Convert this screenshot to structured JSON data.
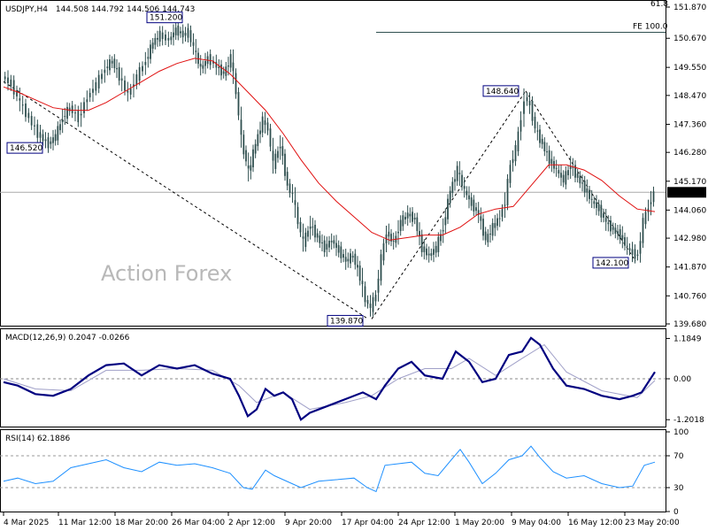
{
  "header": {
    "symbol": "USDJPY,H4",
    "ohlc": "144.508 144.792 144.506 144.743"
  },
  "watermark": "Action Forex",
  "colors": {
    "candle": "#2f4f4f",
    "ma": "#e01010",
    "macd_line": "#000080",
    "macd_signal": "#a0a0c8",
    "rsi": "#1e90ff",
    "grid": "#000000"
  },
  "chart_data": [
    {
      "type": "candlestick",
      "name": "price",
      "ylim": [
        139.68,
        151.87
      ],
      "y_ticks": [
        "151.870",
        "150.670",
        "149.550",
        "148.470",
        "147.360",
        "146.280",
        "145.170",
        "144.060",
        "142.980",
        "141.870",
        "140.760",
        "139.680"
      ],
      "top_tick_label": "61.8",
      "current_price": "144.743",
      "fe_label": "FE 100.0",
      "fe_level": 150.9,
      "annotations": [
        {
          "label": "151.200",
          "x": 200,
          "y": 151.2
        },
        {
          "label": "146.520",
          "x": 40,
          "y": 146.52
        },
        {
          "label": "139.870",
          "x": 416,
          "y": 139.87
        },
        {
          "label": "148.640",
          "x": 594,
          "y": 148.64
        },
        {
          "label": "142.100",
          "x": 718,
          "y": 142.1
        }
      ],
      "x_labels": [
        "4 Mar 2025",
        "11 Mar 12:00",
        "18 Mar 20:00",
        "26 Mar 04:00",
        "2 Apr 12:00",
        "9 Apr 20:00",
        "17 Apr 04:00",
        "24 Apr 12:00",
        "1 May 20:00",
        "9 May 04:00",
        "16 May 12:00",
        "23 May 20:00"
      ],
      "price_path": [
        [
          4,
          149.2
        ],
        [
          14,
          148.9
        ],
        [
          24,
          148.2
        ],
        [
          34,
          147.6
        ],
        [
          44,
          147.0
        ],
        [
          56,
          146.6
        ],
        [
          64,
          146.9
        ],
        [
          72,
          147.6
        ],
        [
          80,
          148.0
        ],
        [
          90,
          147.6
        ],
        [
          100,
          148.4
        ],
        [
          110,
          148.9
        ],
        [
          120,
          149.5
        ],
        [
          128,
          149.8
        ],
        [
          136,
          149.2
        ],
        [
          146,
          148.5
        ],
        [
          156,
          149.2
        ],
        [
          166,
          149.8
        ],
        [
          174,
          150.5
        ],
        [
          182,
          150.8
        ],
        [
          192,
          150.6
        ],
        [
          200,
          151.0
        ],
        [
          208,
          150.8
        ],
        [
          214,
          150.9
        ],
        [
          220,
          150.3
        ],
        [
          228,
          149.5
        ],
        [
          236,
          149.9
        ],
        [
          246,
          149.6
        ],
        [
          254,
          149.3
        ],
        [
          262,
          149.9
        ],
        [
          268,
          148.6
        ],
        [
          274,
          146.8
        ],
        [
          282,
          145.5
        ],
        [
          290,
          146.6
        ],
        [
          298,
          147.5
        ],
        [
          304,
          147.2
        ],
        [
          310,
          145.8
        ],
        [
          318,
          146.6
        ],
        [
          326,
          145.0
        ],
        [
          332,
          144.6
        ],
        [
          338,
          143.6
        ],
        [
          344,
          142.8
        ],
        [
          352,
          143.5
        ],
        [
          360,
          143.0
        ],
        [
          368,
          142.6
        ],
        [
          376,
          142.9
        ],
        [
          384,
          142.5
        ],
        [
          392,
          142.1
        ],
        [
          400,
          142.3
        ],
        [
          408,
          141.5
        ],
        [
          414,
          140.6
        ],
        [
          420,
          140.3
        ],
        [
          426,
          140.8
        ],
        [
          432,
          142.2
        ],
        [
          438,
          143.2
        ],
        [
          446,
          142.8
        ],
        [
          454,
          143.6
        ],
        [
          462,
          143.9
        ],
        [
          470,
          143.7
        ],
        [
          478,
          142.6
        ],
        [
          486,
          142.3
        ],
        [
          494,
          142.6
        ],
        [
          502,
          143.4
        ],
        [
          510,
          144.8
        ],
        [
          518,
          145.6
        ],
        [
          526,
          144.8
        ],
        [
          534,
          144.3
        ],
        [
          542,
          143.9
        ],
        [
          550,
          142.9
        ],
        [
          558,
          143.4
        ],
        [
          566,
          143.8
        ],
        [
          572,
          144.4
        ],
        [
          578,
          145.8
        ],
        [
          584,
          146.4
        ],
        [
          590,
          147.6
        ],
        [
          594,
          148.4
        ],
        [
          600,
          148.1
        ],
        [
          606,
          147.2
        ],
        [
          614,
          146.6
        ],
        [
          622,
          146.0
        ],
        [
          630,
          145.6
        ],
        [
          638,
          145.2
        ],
        [
          646,
          145.8
        ],
        [
          654,
          145.3
        ],
        [
          662,
          144.9
        ],
        [
          670,
          144.4
        ],
        [
          678,
          144.1
        ],
        [
          686,
          143.6
        ],
        [
          694,
          143.3
        ],
        [
          702,
          143.1
        ],
        [
          710,
          142.6
        ],
        [
          716,
          142.4
        ],
        [
          722,
          142.3
        ],
        [
          728,
          143.6
        ],
        [
          734,
          144.2
        ],
        [
          740,
          144.7
        ]
      ],
      "ma_path": [
        [
          4,
          148.8
        ],
        [
          20,
          148.6
        ],
        [
          40,
          148.3
        ],
        [
          60,
          148.0
        ],
        [
          80,
          147.9
        ],
        [
          100,
          147.9
        ],
        [
          120,
          148.2
        ],
        [
          140,
          148.6
        ],
        [
          160,
          149.0
        ],
        [
          180,
          149.4
        ],
        [
          200,
          149.7
        ],
        [
          220,
          149.9
        ],
        [
          240,
          149.8
        ],
        [
          260,
          149.3
        ],
        [
          280,
          148.6
        ],
        [
          300,
          147.9
        ],
        [
          320,
          147.0
        ],
        [
          340,
          146.0
        ],
        [
          360,
          145.1
        ],
        [
          380,
          144.4
        ],
        [
          400,
          143.8
        ],
        [
          420,
          143.2
        ],
        [
          440,
          142.9
        ],
        [
          460,
          143.0
        ],
        [
          480,
          143.1
        ],
        [
          500,
          143.1
        ],
        [
          520,
          143.4
        ],
        [
          540,
          143.9
        ],
        [
          560,
          144.1
        ],
        [
          580,
          144.2
        ],
        [
          600,
          145.0
        ],
        [
          620,
          145.8
        ],
        [
          640,
          145.8
        ],
        [
          660,
          145.6
        ],
        [
          680,
          145.2
        ],
        [
          700,
          144.6
        ],
        [
          720,
          144.1
        ],
        [
          740,
          144.0
        ]
      ],
      "support_lines": [
        {
          "from": [
            4,
            149.0
          ],
          "to": [
            416,
            139.87
          ]
        },
        {
          "from": [
            420,
            139.87
          ],
          "to": [
            594,
            148.64
          ]
        },
        {
          "from": [
            594,
            148.64
          ],
          "to": [
            718,
            142.1
          ]
        }
      ]
    },
    {
      "type": "line",
      "name": "MACD",
      "title": "MACD(12,26,9) 0.2047 -0.0266",
      "ylim": [
        -1.3,
        1.3
      ],
      "y_ticks": [
        "1.1849",
        "0.00",
        "-1.2018"
      ],
      "macd_path": [
        [
          4,
          -0.1
        ],
        [
          20,
          -0.2
        ],
        [
          40,
          -0.45
        ],
        [
          60,
          -0.5
        ],
        [
          80,
          -0.3
        ],
        [
          100,
          0.1
        ],
        [
          120,
          0.4
        ],
        [
          140,
          0.45
        ],
        [
          160,
          0.1
        ],
        [
          180,
          0.4
        ],
        [
          200,
          0.3
        ],
        [
          220,
          0.4
        ],
        [
          240,
          0.15
        ],
        [
          260,
          0.0
        ],
        [
          270,
          -0.5
        ],
        [
          280,
          -1.1
        ],
        [
          290,
          -0.9
        ],
        [
          300,
          -0.3
        ],
        [
          310,
          -0.5
        ],
        [
          320,
          -0.4
        ],
        [
          330,
          -0.6
        ],
        [
          340,
          -1.2
        ],
        [
          350,
          -1.0
        ],
        [
          370,
          -0.8
        ],
        [
          390,
          -0.6
        ],
        [
          410,
          -0.4
        ],
        [
          425,
          -0.6
        ],
        [
          435,
          -0.2
        ],
        [
          450,
          0.3
        ],
        [
          465,
          0.5
        ],
        [
          480,
          0.1
        ],
        [
          500,
          0.0
        ],
        [
          515,
          0.8
        ],
        [
          530,
          0.5
        ],
        [
          545,
          -0.1
        ],
        [
          560,
          0.0
        ],
        [
          575,
          0.7
        ],
        [
          590,
          0.8
        ],
        [
          600,
          1.2
        ],
        [
          610,
          1.0
        ],
        [
          625,
          0.3
        ],
        [
          640,
          -0.2
        ],
        [
          660,
          -0.3
        ],
        [
          680,
          -0.5
        ],
        [
          700,
          -0.6
        ],
        [
          715,
          -0.5
        ],
        [
          725,
          -0.4
        ],
        [
          740,
          0.2
        ]
      ],
      "signal_path": [
        [
          4,
          0.0
        ],
        [
          40,
          -0.3
        ],
        [
          80,
          -0.35
        ],
        [
          120,
          0.25
        ],
        [
          160,
          0.25
        ],
        [
          200,
          0.3
        ],
        [
          240,
          0.25
        ],
        [
          270,
          -0.2
        ],
        [
          290,
          -0.7
        ],
        [
          320,
          -0.4
        ],
        [
          350,
          -0.9
        ],
        [
          390,
          -0.7
        ],
        [
          420,
          -0.5
        ],
        [
          450,
          0.0
        ],
        [
          480,
          0.3
        ],
        [
          510,
          0.3
        ],
        [
          530,
          0.6
        ],
        [
          560,
          0.1
        ],
        [
          590,
          0.6
        ],
        [
          615,
          1.0
        ],
        [
          640,
          0.2
        ],
        [
          680,
          -0.35
        ],
        [
          720,
          -0.55
        ],
        [
          740,
          -0.05
        ]
      ]
    },
    {
      "type": "line",
      "name": "RSI",
      "title": "RSI(14) 62.1886",
      "ylim": [
        0,
        100
      ],
      "y_ticks": [
        "100",
        "70",
        "30",
        "0"
      ],
      "levels": [
        70,
        30
      ],
      "rsi_path": [
        [
          4,
          38
        ],
        [
          20,
          42
        ],
        [
          40,
          35
        ],
        [
          60,
          38
        ],
        [
          80,
          55
        ],
        [
          100,
          60
        ],
        [
          120,
          65
        ],
        [
          140,
          55
        ],
        [
          160,
          50
        ],
        [
          180,
          62
        ],
        [
          200,
          58
        ],
        [
          220,
          60
        ],
        [
          240,
          55
        ],
        [
          260,
          48
        ],
        [
          275,
          30
        ],
        [
          285,
          28
        ],
        [
          300,
          52
        ],
        [
          310,
          45
        ],
        [
          320,
          40
        ],
        [
          330,
          35
        ],
        [
          340,
          30
        ],
        [
          360,
          38
        ],
        [
          380,
          40
        ],
        [
          400,
          42
        ],
        [
          415,
          30
        ],
        [
          425,
          25
        ],
        [
          435,
          58
        ],
        [
          450,
          60
        ],
        [
          465,
          62
        ],
        [
          480,
          48
        ],
        [
          495,
          45
        ],
        [
          510,
          65
        ],
        [
          520,
          78
        ],
        [
          530,
          62
        ],
        [
          545,
          35
        ],
        [
          560,
          48
        ],
        [
          575,
          65
        ],
        [
          590,
          70
        ],
        [
          600,
          82
        ],
        [
          610,
          68
        ],
        [
          625,
          50
        ],
        [
          640,
          42
        ],
        [
          660,
          45
        ],
        [
          680,
          35
        ],
        [
          700,
          30
        ],
        [
          715,
          32
        ],
        [
          728,
          58
        ],
        [
          740,
          62
        ]
      ]
    }
  ]
}
